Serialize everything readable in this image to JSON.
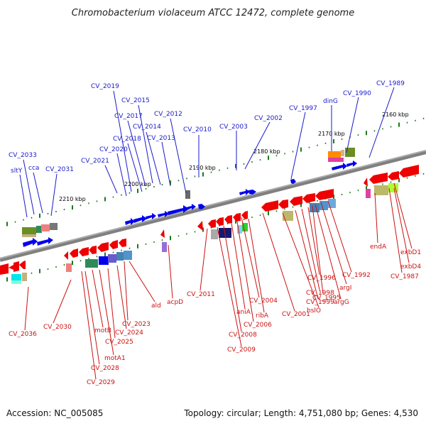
{
  "title": "Chromobacterium violaceum ATCC 12472, complete genome",
  "footer": {
    "accession": "Accession: NC_005085",
    "summary": "Topology: circular; Length: 4,751,080 bp; Genes: 4,530"
  },
  "scale_ticks": [
    "2160 kbp",
    "2170 kbp",
    "2180 kbp",
    "2190 kbp",
    "2200 kbp",
    "2210 kbp"
  ],
  "forward_labels": [
    "CV_1989",
    "CV_1990",
    "dinG",
    "CV_1997",
    "CV_2002",
    "CV_2003",
    "CV_2010",
    "CV_2012",
    "CV_2013",
    "CV_2014",
    "CV_2015",
    "CV_2017",
    "CV_2018",
    "CV_2019",
    "CV_2020",
    "CV_2021",
    "CV_2031",
    "cca",
    "sltY",
    "CV_2033"
  ],
  "reverse_labels": [
    "exbD1",
    "exbD4",
    "CV_1987",
    "endA",
    "CV_1992",
    "argI",
    "argG",
    "CV_1995",
    "CV_1996",
    "CV_1998",
    "CV_1999",
    "hslO",
    "CV_2001",
    "CV_2004",
    "ribA",
    "CV_2006",
    "aniA",
    "CV_2008",
    "CV_2009",
    "CV_2011",
    "acpD",
    "ald",
    "CV_2023",
    "CV_2024",
    "CV_2025",
    "motB",
    "motA1",
    "CV_2028",
    "CV_2029",
    "CV_2030",
    "CV_2036"
  ],
  "colors": {
    "forward": "#1a1acc",
    "reverse": "#cc1111",
    "forward_arrow": "#0000ee",
    "reverse_arrow": "#ee0000",
    "backbone": "#808080",
    "tick_mark": "#1a7a1a"
  }
}
